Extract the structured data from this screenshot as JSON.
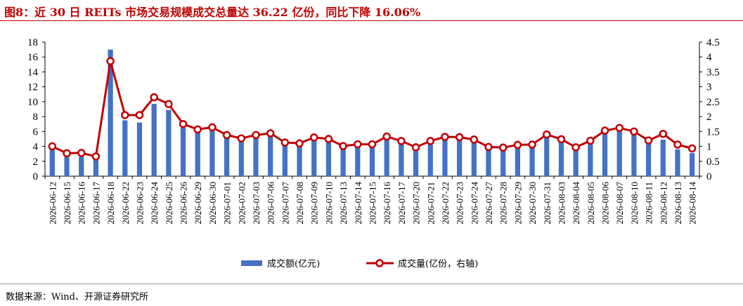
{
  "title": "图8：近 30 日 REITs 市场交易规模成交总量达 36.22 亿份，同比下降 16.06%",
  "source": "数据来源：Wind、开源证券研究所",
  "colors": {
    "bar": "#4472C4",
    "line": "#C00000",
    "title": "#C00000"
  },
  "chart_data": {
    "type": "bar",
    "categories": [
      "2026-06-12",
      "2026-06-15",
      "2026-06-16",
      "2026-06-17",
      "2026-06-18",
      "2026-06-22",
      "2026-06-23",
      "2026-06-24",
      "2026-06-25",
      "2026-06-26",
      "2026-06-29",
      "2026-06-30",
      "2026-07-01",
      "2026-07-02",
      "2026-07-03",
      "2026-07-06",
      "2026-07-07",
      "2026-07-08",
      "2026-07-09",
      "2026-07-10",
      "2026-07-13",
      "2026-07-14",
      "2026-07-15",
      "2026-07-16",
      "2026-07-17",
      "2026-07-20",
      "2026-07-21",
      "2026-07-22",
      "2026-07-23",
      "2026-07-24",
      "2026-07-27",
      "2026-07-28",
      "2026-07-29",
      "2026-07-30",
      "2026-07-31",
      "2026-08-03",
      "2026-08-04",
      "2026-08-05",
      "2026-08-06",
      "2026-08-07",
      "2026-08-10",
      "2026-08-11",
      "2026-08-12",
      "2026-08-13",
      "2026-08-14"
    ],
    "series": [
      {
        "name": "成交额(亿元)",
        "type": "bar",
        "axis": "left",
        "values": [
          3.9,
          2.6,
          2.6,
          2.2,
          17.0,
          7.5,
          7.2,
          9.7,
          8.9,
          6.5,
          6.0,
          6.1,
          5.1,
          4.9,
          5.3,
          5.5,
          4.2,
          4.0,
          5.0,
          5.0,
          4.0,
          4.1,
          4.2,
          5.2,
          4.5,
          3.5,
          4.6,
          5.0,
          4.8,
          4.5,
          3.6,
          3.6,
          4.0,
          4.0,
          5.7,
          5.0,
          3.5,
          4.5,
          6.1,
          6.3,
          5.9,
          4.5,
          4.9,
          3.6,
          3.1
        ]
      },
      {
        "name": "成交量(亿份，右轴)",
        "type": "line",
        "axis": "right",
        "values": [
          1.0,
          0.77,
          0.78,
          0.66,
          3.86,
          2.05,
          2.05,
          2.65,
          2.42,
          1.75,
          1.57,
          1.64,
          1.38,
          1.27,
          1.38,
          1.44,
          1.13,
          1.1,
          1.3,
          1.25,
          1.01,
          1.07,
          1.07,
          1.33,
          1.18,
          0.97,
          1.18,
          1.32,
          1.31,
          1.23,
          0.98,
          0.96,
          1.05,
          1.06,
          1.4,
          1.24,
          0.97,
          1.19,
          1.53,
          1.62,
          1.5,
          1.2,
          1.42,
          1.06,
          0.93
        ]
      }
    ],
    "y_left": {
      "min": 0,
      "max": 18,
      "ticks": [
        "0",
        "2",
        "4",
        "6",
        "8",
        "10",
        "12",
        "14",
        "16",
        "18"
      ]
    },
    "y_right": {
      "min": 0,
      "max": 4.5,
      "ticks": [
        "0",
        "0.5",
        "1",
        "1.5",
        "2",
        "2.5",
        "3",
        "3.5",
        "4",
        "4.5"
      ]
    },
    "xlabel": "",
    "ylabel": "",
    "grid": false,
    "legend": {
      "position": "bottom",
      "items": [
        "成交额(亿元)",
        "成交量(亿份，右轴)"
      ]
    }
  }
}
